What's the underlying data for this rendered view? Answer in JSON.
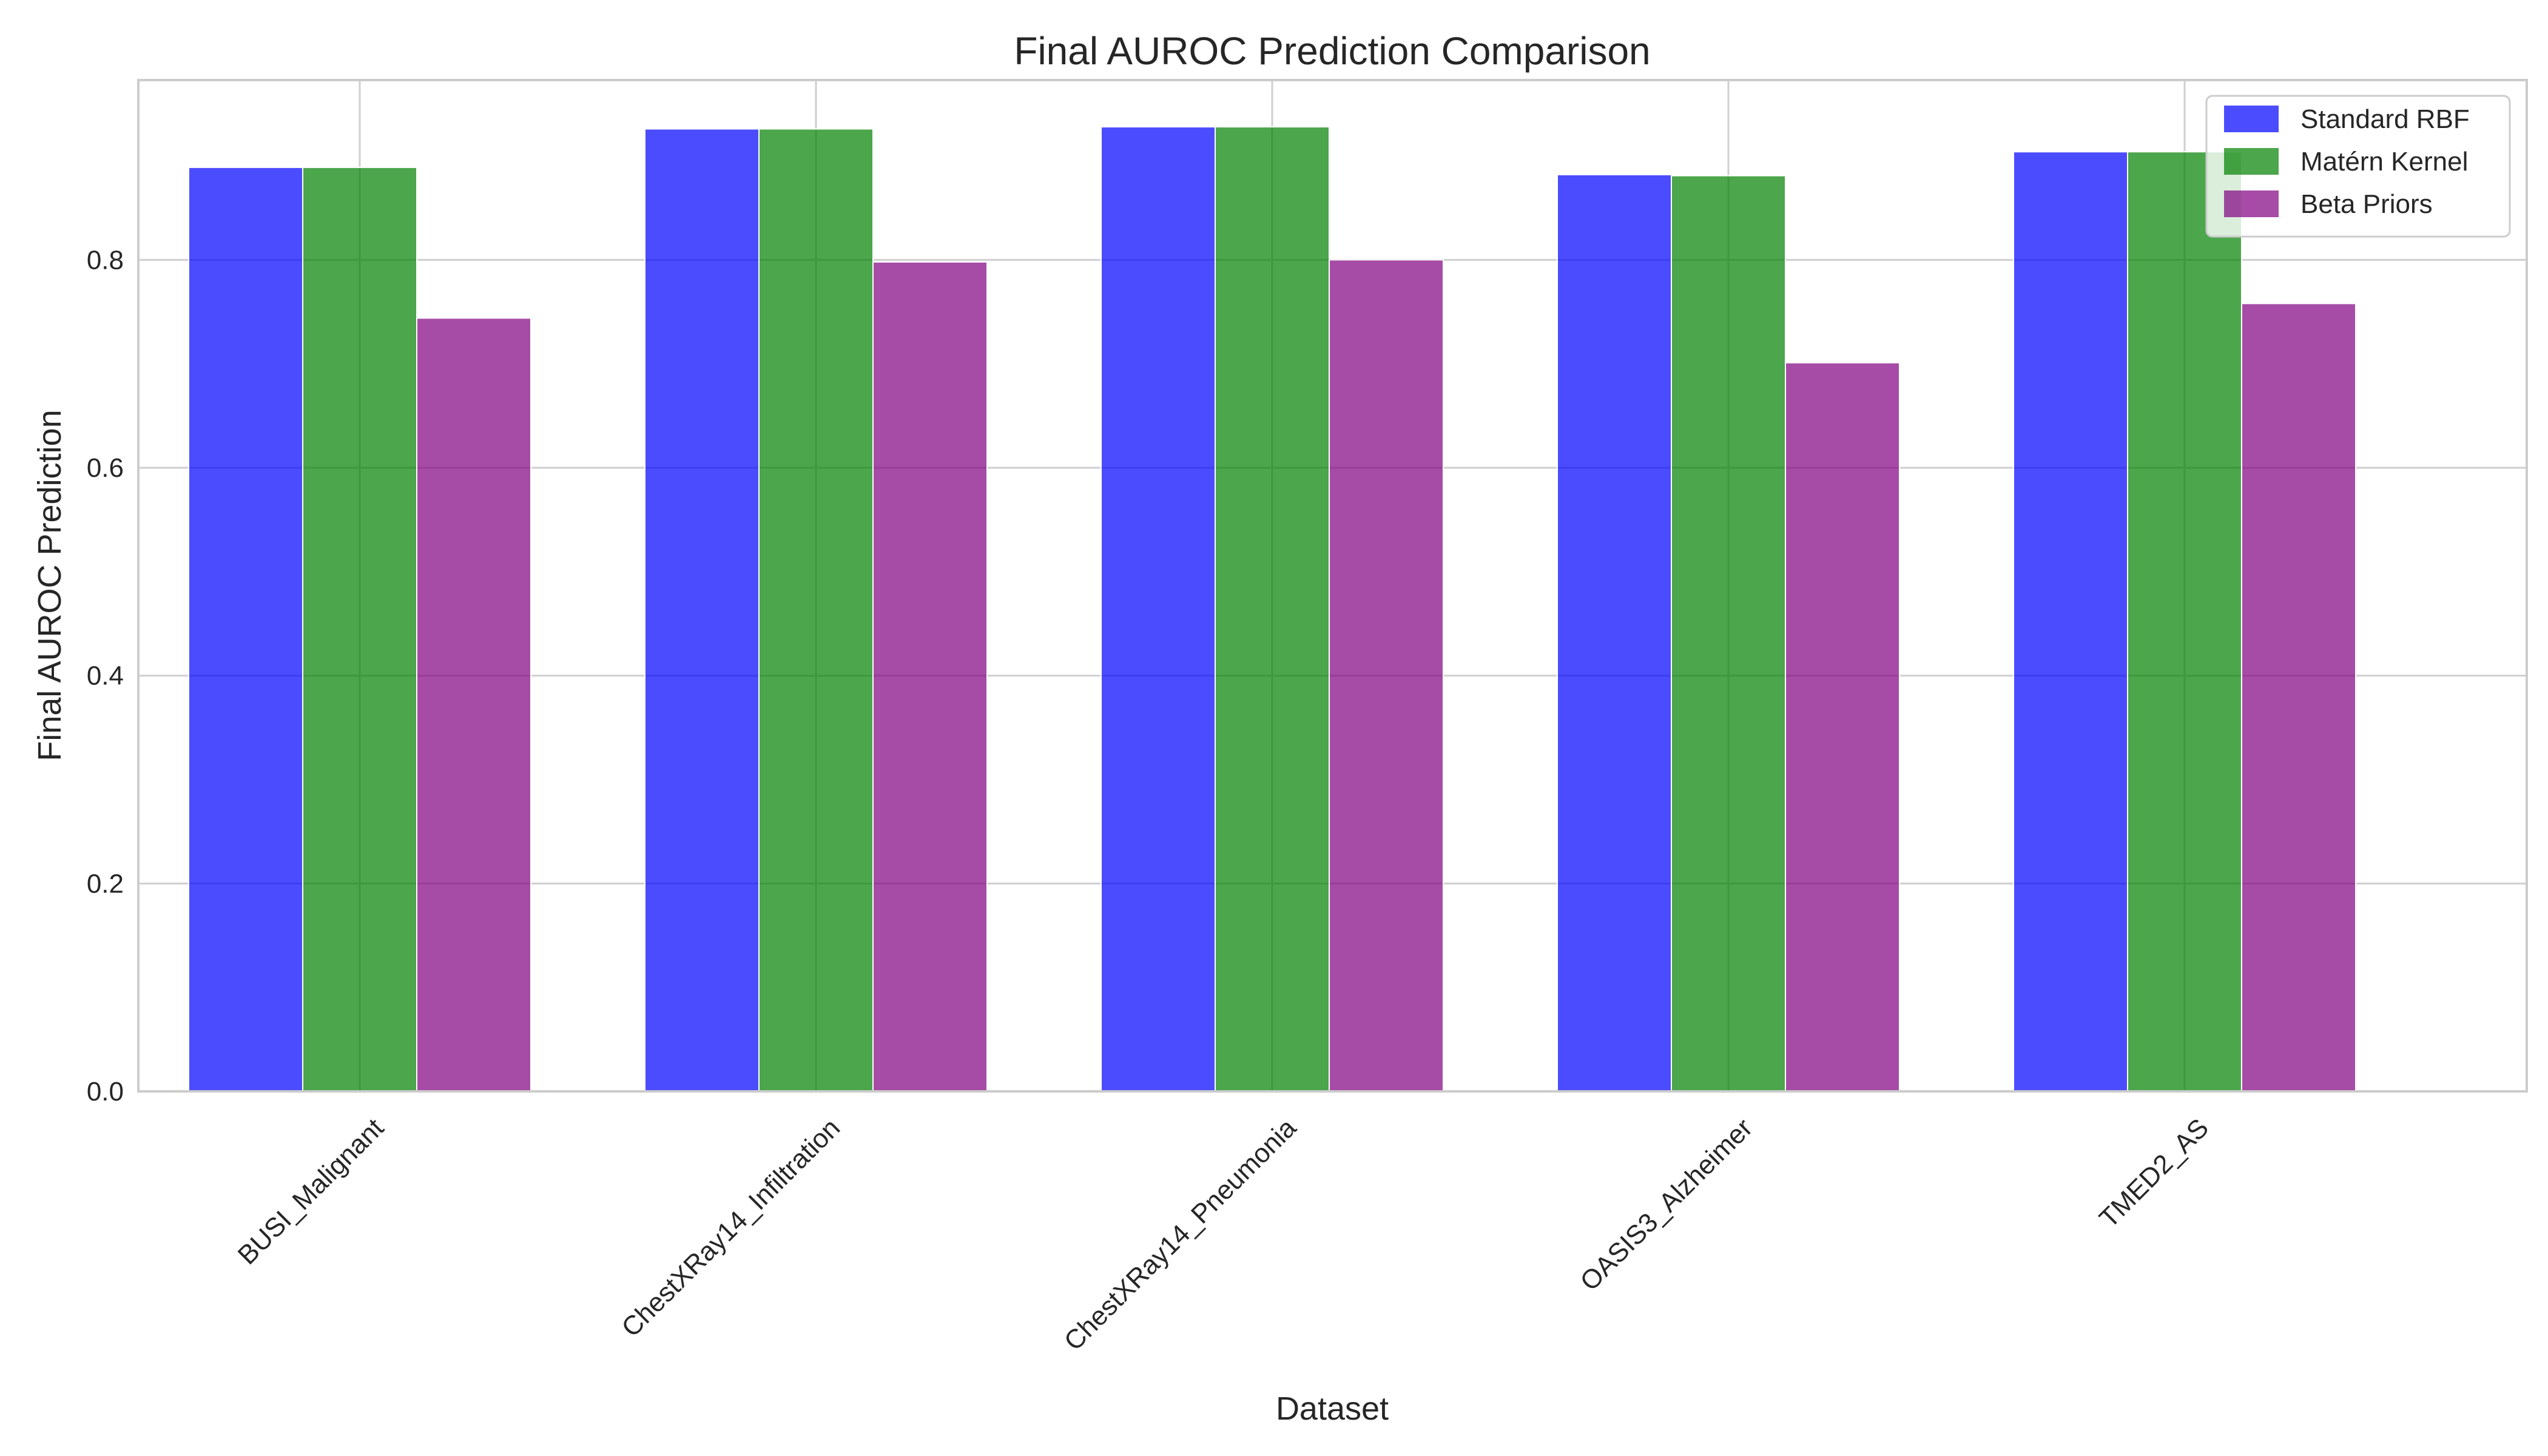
{
  "chart_data": {
    "type": "bar",
    "title": "Final AUROC Prediction Comparison",
    "xlabel": "Dataset",
    "ylabel": "Final AUROC Prediction",
    "categories": [
      "BUSI_Malignant",
      "ChestXRay14_Infiltration",
      "ChestXRay14_Pneumonia",
      "OASIS3_Alzheimer",
      "TMED2_AS"
    ],
    "series": [
      {
        "name": "Standard RBF",
        "color": "#0000ff",
        "values": [
          0.889,
          0.926,
          0.928,
          0.882,
          0.904
        ]
      },
      {
        "name": "Matérn Kernel",
        "color": "#008000",
        "values": [
          0.889,
          0.926,
          0.928,
          0.881,
          0.904
        ]
      },
      {
        "name": "Beta Priors",
        "color": "#800080",
        "values": [
          0.744,
          0.798,
          0.8,
          0.701,
          0.758
        ]
      }
    ],
    "ylim": [
      0,
      0.973
    ],
    "yticks": [
      "0.0",
      "0.2",
      "0.4",
      "0.6",
      "0.8"
    ],
    "ytick_values": [
      0,
      0.2,
      0.4,
      0.6,
      0.8
    ],
    "grid": true,
    "legend_position": "top-right",
    "bar_opacity": 0.7
  }
}
